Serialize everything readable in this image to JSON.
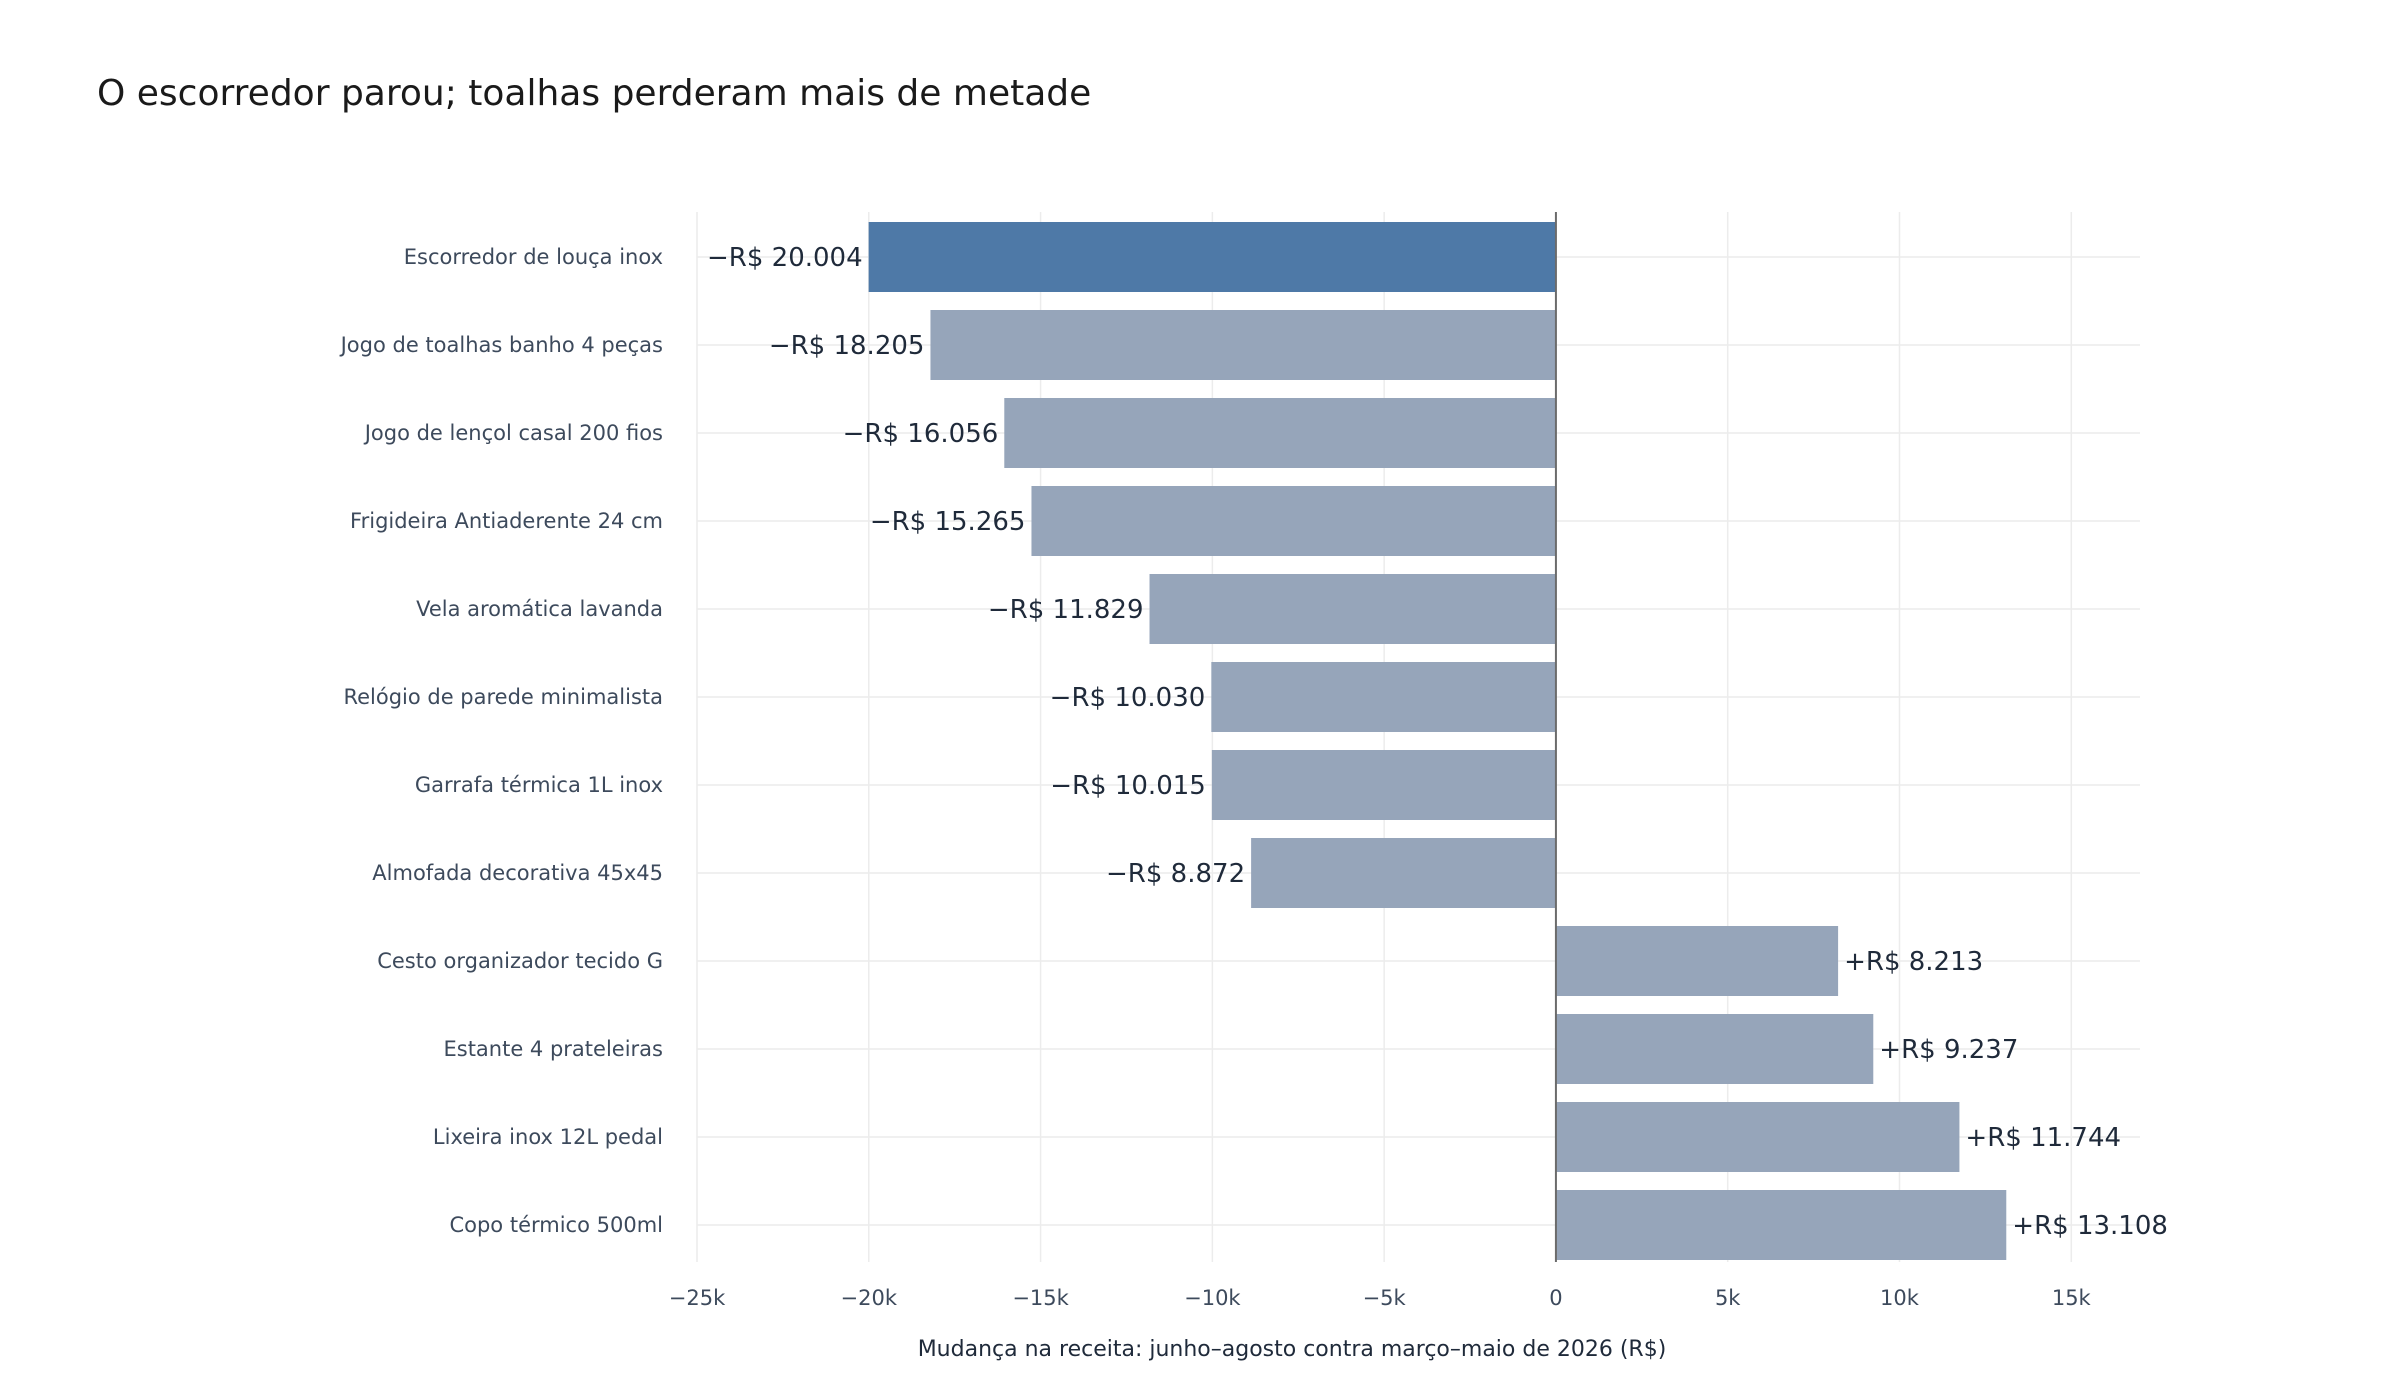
{
  "chart_data": {
    "type": "bar",
    "orientation": "horizontal",
    "title": "O escorredor parou; toalhas perderam mais de metade",
    "xlabel": "Mudança na receita: junho–agosto contra março–maio de 2026 (R$)",
    "ylabel": "",
    "xlim": [
      -25000,
      17000
    ],
    "grid": true,
    "legend": "none",
    "x_ticks": [
      -25000,
      -20000,
      -15000,
      -10000,
      -5000,
      0,
      5000,
      10000,
      15000
    ],
    "x_tick_labels": [
      "−25k",
      "−20k",
      "−15k",
      "−10k",
      "−5k",
      "0",
      "5k",
      "10k",
      "15k"
    ],
    "categories": [
      "Escorredor de louça inox",
      "Jogo de toalhas banho 4 peças",
      "Jogo de lençol casal 200 fios",
      "Frigideira Antiaderente 24 cm",
      "Vela aromática lavanda",
      "Relógio de parede minimalista",
      "Garrafa térmica 1L inox",
      "Almofada decorativa 45x45",
      "Cesto organizador tecido G",
      "Estante 4 prateleiras",
      "Lixeira inox 12L pedal",
      "Copo térmico 500ml"
    ],
    "values": [
      -20004,
      -18205,
      -16056,
      -15265,
      -11829,
      -10030,
      -10015,
      -8872,
      8213,
      9237,
      11744,
      13108
    ],
    "value_labels": [
      "−R$ 20.004",
      "−R$ 18.205",
      "−R$ 16.056",
      "−R$ 15.265",
      "−R$ 11.829",
      "−R$ 10.030",
      "−R$ 10.015",
      "−R$ 8.872",
      "+R$ 8.213",
      "+R$ 9.237",
      "+R$ 11.744",
      "+R$ 13.108"
    ],
    "highlight_index": 0,
    "colors": {
      "highlight": "#4e79a7",
      "default": "#96a5ba",
      "grid": "#ececec",
      "zero_line": "#6b6b6b"
    }
  }
}
